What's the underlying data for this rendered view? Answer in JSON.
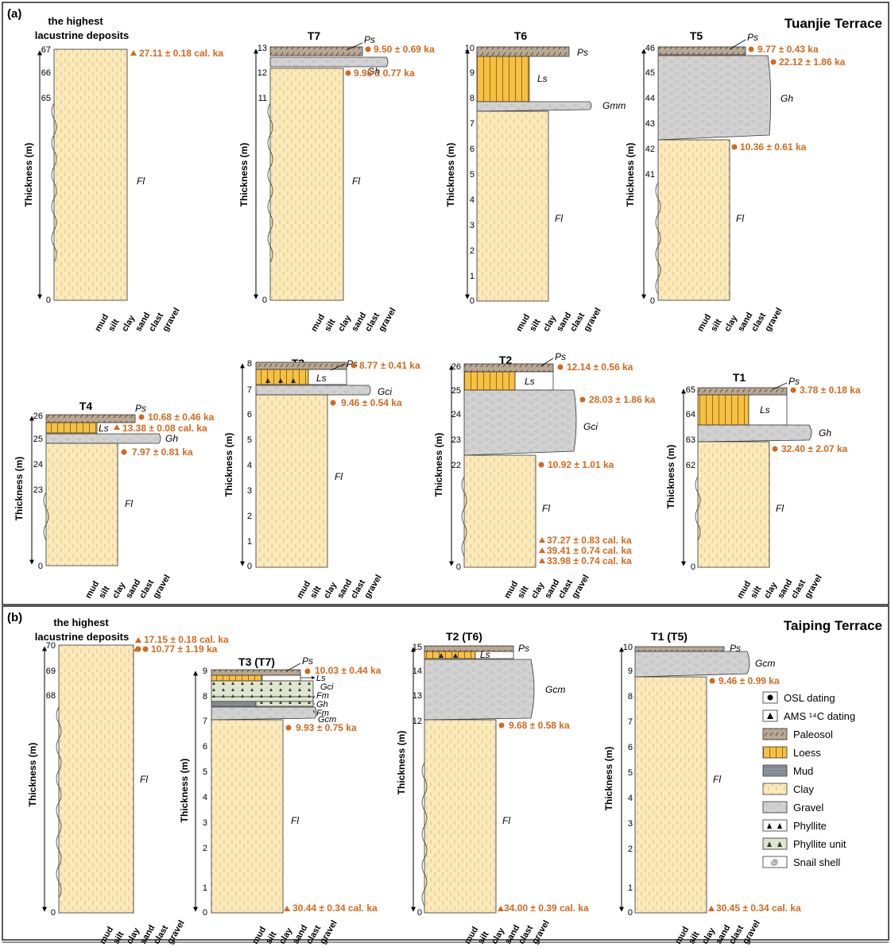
{
  "panel_a": {
    "label": "(a)",
    "title": "Tuanjie Terrace",
    "grain_ticks": [
      "mud",
      "silt",
      "clay",
      "sand",
      "clast",
      "gravel"
    ],
    "axis_title": "Thickness (m)",
    "sections": [
      {
        "id": "hl-a",
        "header_line1": "the highest",
        "header_line2": "lacustrine deposits",
        "ticks": [
          "67",
          "66",
          "65",
          "0"
        ],
        "units": [
          {
            "label": "Fl",
            "type": "clay"
          }
        ],
        "ages": [
          {
            "text": "27.11 ± 0.18 cal. ka",
            "marker": "triangle"
          }
        ]
      },
      {
        "id": "T7",
        "header": "T7",
        "ticks": [
          "13",
          "12",
          "11",
          "0"
        ],
        "units": [
          {
            "label": "Ps",
            "type": "paleosol"
          },
          {
            "label": "Gh",
            "type": "gravel"
          },
          {
            "label": "Fl",
            "type": "clay"
          }
        ],
        "ages": [
          {
            "text": "9.50 ± 0.69 ka",
            "marker": "circle"
          },
          {
            "text": "9.98 ± 0.77 ka",
            "marker": "circle"
          }
        ]
      },
      {
        "id": "T6",
        "header": "T6",
        "ticks": [
          "10",
          "9",
          "8",
          "7",
          "6",
          "5",
          "4",
          "3",
          "2",
          "1",
          "0"
        ],
        "units": [
          {
            "label": "Ps",
            "type": "paleosol"
          },
          {
            "label": "Ls",
            "type": "loess"
          },
          {
            "label": "Gmm",
            "type": "gravel"
          },
          {
            "label": "Fl",
            "type": "clay"
          }
        ],
        "ages": []
      },
      {
        "id": "T5",
        "header": "T5",
        "ticks": [
          "46",
          "45",
          "44",
          "43",
          "42",
          "41",
          "0"
        ],
        "units": [
          {
            "label": "Ps",
            "type": "paleosol"
          },
          {
            "label": "Gh",
            "type": "gravel"
          },
          {
            "label": "Fl",
            "type": "clay"
          }
        ],
        "ages": [
          {
            "text": "9.77 ± 0.43 ka",
            "marker": "circle"
          },
          {
            "text": "22.12 ± 1.86 ka",
            "marker": "circle"
          },
          {
            "text": "10.36 ± 0.61 ka",
            "marker": "circle"
          }
        ]
      },
      {
        "id": "T4",
        "header": "T4",
        "ticks": [
          "26",
          "25",
          "24",
          "23",
          "0"
        ],
        "units": [
          {
            "label": "Ps",
            "type": "paleosol"
          },
          {
            "label": "Ls",
            "type": "loess"
          },
          {
            "label": "Gh",
            "type": "gravel"
          },
          {
            "label": "Fl",
            "type": "clay"
          }
        ],
        "ages": [
          {
            "text": "10.68 ± 0.46 ka",
            "marker": "circle"
          },
          {
            "text": "13.38 ± 0.08 cal. ka",
            "marker": "triangle"
          },
          {
            "text": "7.97 ± 0.81 ka",
            "marker": "circle"
          }
        ]
      },
      {
        "id": "T3",
        "header": "T3",
        "ticks": [
          "8",
          "7",
          "6",
          "5",
          "4",
          "3",
          "2",
          "1",
          "0"
        ],
        "units": [
          {
            "label": "Ps",
            "type": "paleosol"
          },
          {
            "label": "Ls",
            "type": "loess"
          },
          {
            "label": "Gci",
            "type": "gravel"
          },
          {
            "label": "Fl",
            "type": "clay"
          }
        ],
        "ages": [
          {
            "text": "8.77 ± 0.41 ka",
            "marker": "circle"
          },
          {
            "text": "9.46 ± 0.54 ka",
            "marker": "circle"
          }
        ]
      },
      {
        "id": "T2",
        "header": "T2",
        "ticks": [
          "26",
          "25",
          "24",
          "23",
          "22",
          "0"
        ],
        "units": [
          {
            "label": "Ps",
            "type": "paleosol"
          },
          {
            "label": "Ls",
            "type": "loess"
          },
          {
            "label": "Gci",
            "type": "gravel"
          },
          {
            "label": "Fl",
            "type": "clay"
          }
        ],
        "ages": [
          {
            "text": "12.14 ± 0.56 ka",
            "marker": "circle"
          },
          {
            "text": "28.03 ± 1.86 ka",
            "marker": "circle"
          },
          {
            "text": "10.92 ± 1.01 ka",
            "marker": "circle"
          },
          {
            "text": "37.27 ± 0.83 cal. ka",
            "marker": "triangle"
          },
          {
            "text": "39.41 ± 0.74 cal. ka",
            "marker": "triangle"
          },
          {
            "text": "33.98 ± 0.74 cal. ka",
            "marker": "triangle"
          }
        ]
      },
      {
        "id": "T1",
        "header": "T1",
        "ticks": [
          "65",
          "64",
          "63",
          "62",
          "0"
        ],
        "units": [
          {
            "label": "Ps",
            "type": "paleosol"
          },
          {
            "label": "Ls",
            "type": "loess"
          },
          {
            "label": "Gh",
            "type": "gravel"
          },
          {
            "label": "Fl",
            "type": "clay"
          }
        ],
        "ages": [
          {
            "text": "3.78 ± 0.18 ka",
            "marker": "circle"
          },
          {
            "text": "32.40 ± 2.07 ka",
            "marker": "circle"
          }
        ]
      }
    ]
  },
  "panel_b": {
    "label": "(b)",
    "title": "Taiping Terrace",
    "sections": [
      {
        "id": "hl-b",
        "header_line1": "the highest",
        "header_line2": "lacustrine deposits",
        "ticks": [
          "70",
          "69",
          "68",
          "0"
        ],
        "units": [
          {
            "label": "Fl",
            "type": "clay"
          }
        ],
        "ages": [
          {
            "text": "17.15 ± 0.18 cal. ka",
            "marker": "triangle"
          },
          {
            "text": "10.77 ± 1.19 ka",
            "marker": "circle"
          }
        ]
      },
      {
        "id": "T3T7",
        "header": "T3 (T7)",
        "ticks": [
          "9",
          "8",
          "7",
          "6",
          "5",
          "4",
          "3",
          "2",
          "1",
          "0"
        ],
        "units": [
          {
            "label": "Ps",
            "type": "paleosol"
          },
          {
            "label": "Ls",
            "type": "loess"
          },
          {
            "label": "Gci",
            "type": "gravel"
          },
          {
            "label": "Fm",
            "type": "mud"
          },
          {
            "label": "Gh",
            "type": "gravel"
          },
          {
            "label": "Fm",
            "type": "mud"
          },
          {
            "label": "Gcm",
            "type": "gravel"
          },
          {
            "label": "Fl",
            "type": "clay"
          }
        ],
        "ages": [
          {
            "text": "10.03 ± 0.44 ka",
            "marker": "circle"
          },
          {
            "text": "9.93 ± 0.75 ka",
            "marker": "circle"
          },
          {
            "text": "30.44 ± 0.34 cal. ka",
            "marker": "triangle"
          }
        ]
      },
      {
        "id": "T2T6",
        "header": "T2 (T6)",
        "ticks": [
          "15",
          "14",
          "13",
          "12",
          "0"
        ],
        "units": [
          {
            "label": "Ps",
            "type": "paleosol"
          },
          {
            "label": "Ls",
            "type": "loess"
          },
          {
            "label": "Gcm",
            "type": "gravel"
          },
          {
            "label": "Fl",
            "type": "clay"
          }
        ],
        "ages": [
          {
            "text": "9.68 ± 0.58 ka",
            "marker": "circle"
          },
          {
            "text": "34.00 ± 0.39 cal. ka",
            "marker": "triangle"
          }
        ]
      },
      {
        "id": "T1T5",
        "header": "T1 (T5)",
        "ticks": [
          "10",
          "9",
          "8",
          "7",
          "6",
          "5",
          "4",
          "3",
          "2",
          "1",
          "0"
        ],
        "units": [
          {
            "label": "Ps",
            "type": "paleosol"
          },
          {
            "label": "Gcm",
            "type": "gravel"
          },
          {
            "label": "Fl",
            "type": "clay"
          }
        ],
        "ages": [
          {
            "text": "9.46 ± 0.99 ka",
            "marker": "circle"
          },
          {
            "text": "30.45 ± 0.34 cal. ka",
            "marker": "triangle"
          }
        ]
      }
    ]
  },
  "legend": [
    {
      "label": "OSL dating",
      "type": "osl"
    },
    {
      "label": "AMS ¹⁴C dating",
      "type": "ams"
    },
    {
      "label": "Paleosol",
      "type": "paleosol"
    },
    {
      "label": "Loess",
      "type": "loess"
    },
    {
      "label": "Mud",
      "type": "mud"
    },
    {
      "label": "Clay",
      "type": "clay"
    },
    {
      "label": "Gravel",
      "type": "gravel"
    },
    {
      "label": "Phyllite",
      "type": "phyllite"
    },
    {
      "label": "Phyllite unit",
      "type": "phyllite-unit"
    },
    {
      "label": "Snail shell",
      "type": "snail"
    }
  ],
  "colors": {
    "clay": "#fbe9b8",
    "loess": "#f7c042",
    "paleosol": "#b8a792",
    "gravel": "#cfcfcf",
    "mud": "#8e959c",
    "phyllite_unit": "#dfe6cf",
    "age_text": "#d2691e"
  }
}
